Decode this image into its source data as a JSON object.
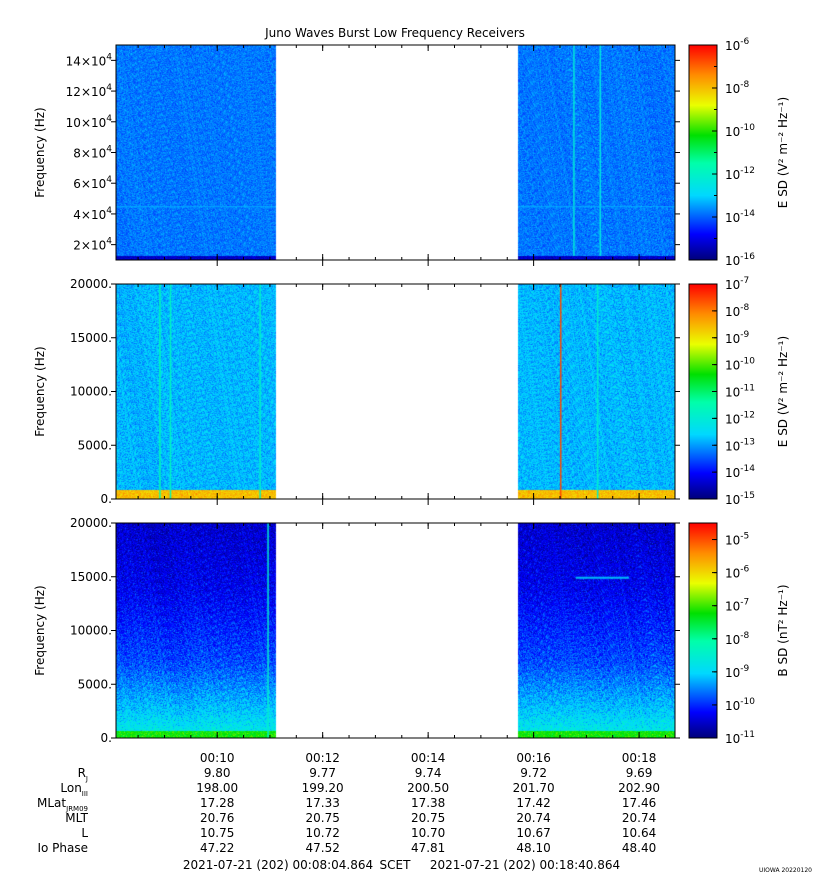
{
  "title": "Juno Waves Burst Low Frequency Receivers",
  "watermark": "UIOWA 20220120",
  "footer": {
    "start": "2021-07-21 (202) 00:08:04.864",
    "scet": "SCET",
    "end": "2021-07-21 (202) 00:18:40.864"
  },
  "time_axis": {
    "start_min": 8.081,
    "end_min": 18.681,
    "tick_labels": [
      "00:10",
      "00:12",
      "00:14",
      "00:16",
      "00:18"
    ],
    "tick_values_min": [
      10,
      12,
      14,
      16,
      18
    ],
    "data_gap_min": [
      11.1,
      15.7
    ]
  },
  "ephemeris": {
    "row_labels": [
      "R_J",
      "Lon_III",
      "MLat_JRM09",
      "MLT",
      "L",
      "Io Phase"
    ],
    "rows": [
      [
        "9.80",
        "9.77",
        "9.74",
        "9.72",
        "9.69"
      ],
      [
        "198.00",
        "199.20",
        "200.50",
        "201.70",
        "202.90"
      ],
      [
        "17.28",
        "17.33",
        "17.38",
        "17.42",
        "17.46"
      ],
      [
        "20.76",
        "20.75",
        "20.75",
        "20.74",
        "20.74"
      ],
      [
        "10.75",
        "10.72",
        "10.70",
        "10.67",
        "10.64"
      ],
      [
        "47.22",
        "47.52",
        "47.81",
        "48.10",
        "48.40"
      ]
    ]
  },
  "chart_data": [
    {
      "type": "heatmap",
      "ylabel": "Frequency (Hz)",
      "ylim": [
        10000,
        150000
      ],
      "ytick_values": [
        20000,
        40000,
        60000,
        80000,
        100000,
        120000,
        140000
      ],
      "ytick_mantissa": [
        "2",
        "4",
        "6",
        "8",
        "10",
        "12",
        "14"
      ],
      "ytick_exponent": "4",
      "colorbar": {
        "label": "E SD (V² m⁻² Hz⁻¹)",
        "log_range": [
          -16,
          -6
        ],
        "tick_exponents": [
          "-6",
          "-8",
          "-10",
          "-12",
          "-14",
          "-16"
        ]
      },
      "background_level": -13.8,
      "features": [
        {
          "kind": "vertical_line",
          "time_min": 16.75,
          "level": -12.3
        },
        {
          "kind": "vertical_line",
          "time_min": 17.25,
          "level": -12.4
        },
        {
          "kind": "horizontal_band",
          "freq": 45000,
          "level": -13.3
        },
        {
          "kind": "bottom_band",
          "level": -15.3
        }
      ]
    },
    {
      "type": "heatmap",
      "ylabel": "Frequency (Hz)",
      "ylim": [
        0,
        20000
      ],
      "ytick_values": [
        0,
        5000,
        10000,
        15000,
        20000
      ],
      "ytick_labels": [
        "0.",
        "5000.",
        "10000.",
        "15000.",
        "20000."
      ],
      "colorbar": {
        "label": "E SD (V² m⁻² Hz⁻¹)",
        "log_range": [
          -15,
          -7
        ],
        "tick_exponents": [
          "-7",
          "-8",
          "-9",
          "-10",
          "-11",
          "-12",
          "-13",
          "-14",
          "-15"
        ]
      },
      "background_level": -12.8,
      "features": [
        {
          "kind": "low_freq_band",
          "freq_max": 800,
          "level": -8.6
        },
        {
          "kind": "vertical_line",
          "time_min": 16.5,
          "level": -7.6
        },
        {
          "kind": "vertical_line",
          "time_min": 8.9,
          "level": -11.5
        },
        {
          "kind": "vertical_line",
          "time_min": 9.1,
          "level": -11.7
        },
        {
          "kind": "vertical_line",
          "time_min": 10.8,
          "level": -11.8
        },
        {
          "kind": "vertical_line",
          "time_min": 17.2,
          "level": -11.9
        }
      ]
    },
    {
      "type": "heatmap",
      "ylabel": "Frequency (Hz)",
      "ylim": [
        0,
        20000
      ],
      "ytick_values": [
        0,
        5000,
        10000,
        15000,
        20000
      ],
      "ytick_labels": [
        "0.",
        "5000.",
        "10000.",
        "15000.",
        "20000."
      ],
      "colorbar": {
        "label": "B SD (nT² Hz⁻¹)",
        "log_range": [
          -11,
          -4.5
        ],
        "tick_exponents": [
          "-5",
          "-6",
          "-7",
          "-8",
          "-9",
          "-10",
          "-11"
        ]
      },
      "background_profile": [
        [
          0,
          -8.6
        ],
        [
          2500,
          -9.1
        ],
        [
          7000,
          -9.8
        ],
        [
          14000,
          -10.3
        ],
        [
          20000,
          -10.5
        ]
      ],
      "features": [
        {
          "kind": "low_freq_band",
          "freq_max": 600,
          "level": -7.2
        },
        {
          "kind": "horizontal_line",
          "freq": 15000,
          "time_range_min": [
            16.8,
            17.8
          ],
          "level": -9.0
        },
        {
          "kind": "vertical_line",
          "time_min": 10.95,
          "level": -8.5
        }
      ]
    }
  ]
}
